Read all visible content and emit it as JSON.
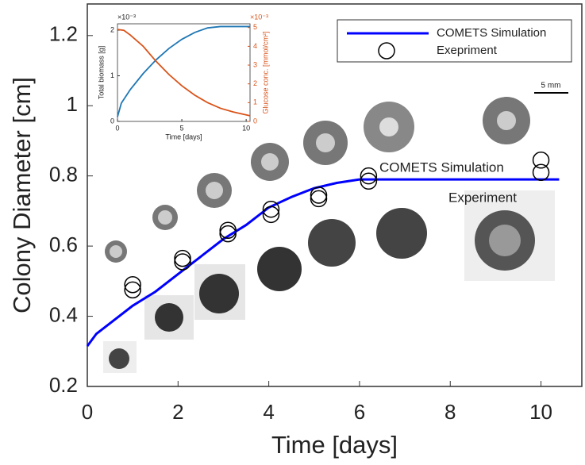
{
  "chart_data": [
    {
      "type": "line",
      "xlabel": "Time [days]",
      "ylabel": "Colony Diameter [cm]",
      "xlim": [
        0,
        10.9
      ],
      "ylim": [
        0.2,
        1.29
      ],
      "xticks": [
        0,
        2,
        4,
        6,
        8,
        10
      ],
      "yticks": [
        0.2,
        0.4,
        0.6,
        0.8,
        1,
        1.2
      ],
      "legend": "upper right",
      "series": [
        {
          "name": "COMETS Simulation",
          "color": "#0000ff",
          "marker": "none",
          "x": [
            0,
            0.2,
            0.5,
            1,
            1.5,
            2,
            2.5,
            3,
            3.5,
            4,
            4.5,
            5,
            5.5,
            6,
            10.4
          ],
          "values": [
            0.315,
            0.35,
            0.38,
            0.43,
            0.47,
            0.52,
            0.57,
            0.62,
            0.66,
            0.71,
            0.74,
            0.765,
            0.78,
            0.79,
            0.79
          ]
        },
        {
          "name": "Exepriment",
          "color": "#000000",
          "marker": "circle",
          "x": [
            1,
            1,
            2.1,
            2.1,
            3.1,
            3.1,
            4.05,
            4.05,
            5.1,
            5.1,
            6.2,
            6.2,
            10,
            10
          ],
          "values": [
            0.475,
            0.49,
            0.555,
            0.565,
            0.635,
            0.645,
            0.69,
            0.705,
            0.735,
            0.745,
            0.785,
            0.8,
            0.81,
            0.845
          ]
        }
      ],
      "annotations": [
        "COMETS Simulation",
        "Experiment",
        "5 mm"
      ]
    },
    {
      "type": "line",
      "xlabel": "Time [days]",
      "ylabel": "Total biomass [g]",
      "y2label": "Glucose conc. [mmol/cm²]",
      "ylabel_exponent": "×10⁻³",
      "y2label_exponent": "×10⁻³",
      "xlim": [
        0,
        10.3
      ],
      "ylim": [
        0,
        2.14
      ],
      "y2lim": [
        0,
        5.2
      ],
      "xticks": [
        0,
        5,
        10
      ],
      "yticks": [
        0,
        1,
        2
      ],
      "y2ticks": [
        0,
        1,
        2,
        3,
        4,
        5
      ],
      "series": [
        {
          "name": "Total biomass",
          "color": "#1f77b4",
          "x": [
            0,
            0.3,
            1,
            2,
            3,
            4,
            5,
            6,
            7,
            8,
            10.3
          ],
          "values": [
            0.1,
            0.4,
            0.7,
            1.05,
            1.35,
            1.6,
            1.8,
            1.95,
            2.05,
            2.08,
            2.08
          ]
        },
        {
          "name": "Glucose",
          "color": "#d95319",
          "axis": "y2",
          "x": [
            0,
            0.5,
            1,
            2,
            3,
            4,
            5,
            6,
            7,
            8,
            9,
            10.3
          ],
          "values": [
            4.9,
            4.85,
            4.6,
            4.0,
            3.2,
            2.5,
            1.9,
            1.4,
            1.0,
            0.7,
            0.5,
            0.3
          ]
        }
      ]
    }
  ]
}
